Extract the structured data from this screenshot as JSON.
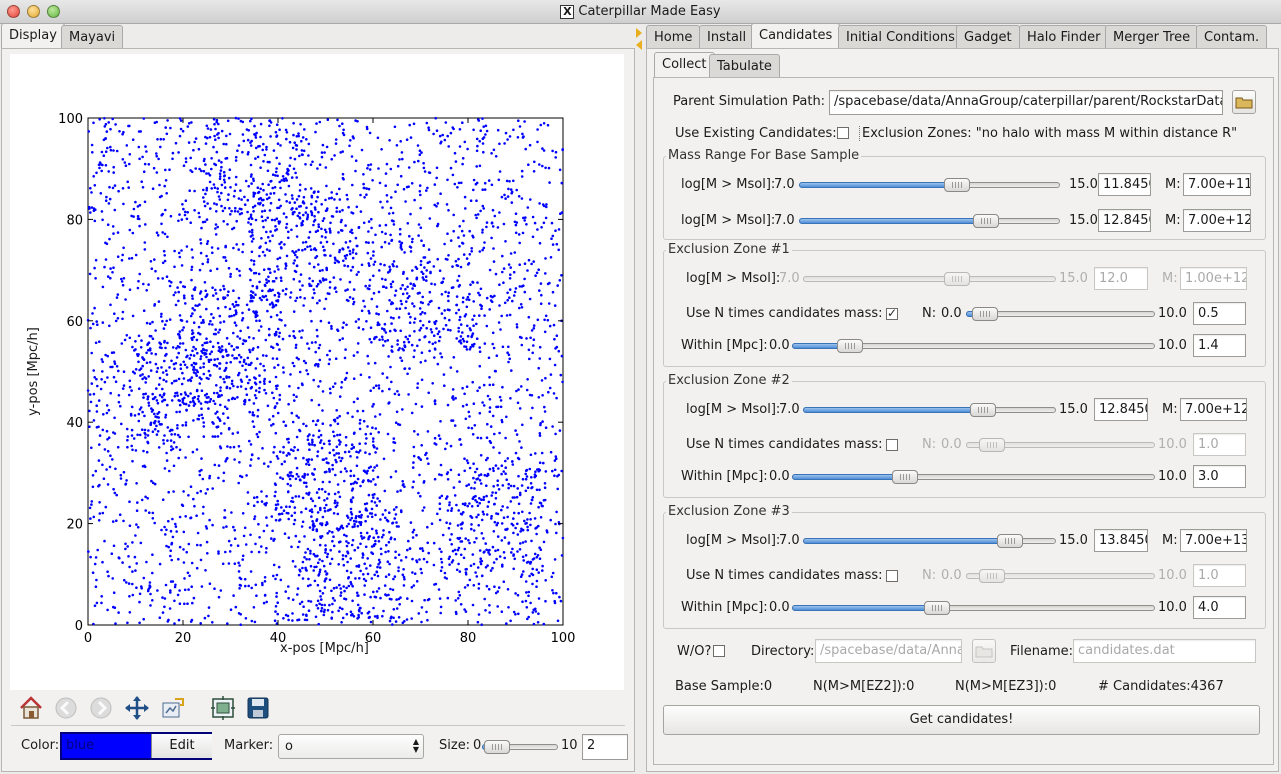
{
  "window": {
    "title": "Caterpillar Made Easy"
  },
  "left_tabs": [
    "Display",
    "Mayavi"
  ],
  "right_tabs": [
    "Home",
    "Install",
    "Candidates",
    "Initial Conditions",
    "Gadget",
    "Halo Finder",
    "Merger Tree",
    "Contam."
  ],
  "sub_tabs": [
    "Collect",
    "Tabulate"
  ],
  "plot": {
    "xlabel": "x-pos [Mpc/h]",
    "ylabel": "y-pos [Mpc/h]",
    "xticks": [
      "0",
      "20",
      "40",
      "60",
      "80",
      "100"
    ],
    "yticks": [
      "0",
      "20",
      "40",
      "60",
      "80",
      "100"
    ]
  },
  "chart_data": {
    "type": "scatter",
    "title": "",
    "xlabel": "x-pos [Mpc/h]",
    "ylabel": "y-pos [Mpc/h]",
    "xlim": [
      0,
      100
    ],
    "ylim": [
      0,
      100
    ],
    "marker": "o",
    "marker_size": 2,
    "color": "#0000ff",
    "n_points": 4367,
    "sample_points": [
      [
        1.2,
        88.5
      ],
      [
        3.8,
        72.1
      ],
      [
        6.5,
        45.3
      ],
      [
        10.2,
        19.8
      ],
      [
        12.7,
        54.2
      ],
      [
        15.5,
        84.6
      ],
      [
        18.1,
        31.4
      ],
      [
        21.4,
        9.7
      ],
      [
        24.9,
        62.3
      ],
      [
        27.3,
        78.5
      ],
      [
        30.5,
        44.8
      ],
      [
        33.1,
        56.0
      ],
      [
        35.6,
        25.2
      ],
      [
        38.2,
        91.3
      ],
      [
        40.7,
        67.9
      ],
      [
        42.4,
        47.1
      ],
      [
        45.8,
        14.3
      ],
      [
        47.2,
        35.6
      ],
      [
        50.1,
        81.7
      ],
      [
        52.5,
        24.1
      ],
      [
        54.7,
        41.8
      ],
      [
        56.3,
        9.2
      ],
      [
        58.9,
        66.4
      ],
      [
        61.2,
        38.0
      ],
      [
        63.5,
        95.6
      ],
      [
        65.8,
        52.7
      ],
      [
        68.4,
        18.3
      ],
      [
        70.7,
        74.9
      ],
      [
        73.0,
        44.1
      ],
      [
        75.6,
        29.8
      ],
      [
        78.1,
        87.2
      ],
      [
        80.4,
        58.5
      ],
      [
        82.9,
        12.6
      ],
      [
        85.3,
        47.4
      ],
      [
        87.6,
        70.3
      ],
      [
        90.1,
        33.9
      ],
      [
        92.8,
        6.5
      ],
      [
        95.2,
        54.8
      ],
      [
        97.4,
        20.7
      ],
      [
        99.1,
        74.0
      ]
    ]
  },
  "toolbar": {
    "icons": [
      "home-icon",
      "back-icon",
      "forward-icon",
      "pan-icon",
      "configure-icon",
      "subplots-icon",
      "save-icon"
    ]
  },
  "display_controls": {
    "color_label": "Color:",
    "color_value": "blue",
    "edit_label": "Edit",
    "marker_label": "Marker:",
    "marker_value": "o",
    "size_label": "Size:",
    "size_min": "0",
    "size_max": "10",
    "size_value": "2",
    "size_fraction": 0.2
  },
  "collect": {
    "parent_path_label": "Parent Simulation Path:",
    "parent_path_value": "/spacebase/data/AnnaGroup/caterpillar/parent/RockstarData",
    "use_existing_label": "Use Existing Candidates:",
    "use_existing_checked": false,
    "exclusion_note": "Exclusion Zones: \"no halo with mass M within distance R\"",
    "mass_range": {
      "title": "Mass Range For Base Sample",
      "rows": [
        {
          "label": "log[M > Msol]:",
          "min": "7.0",
          "max": "15.0",
          "value": "11.8450",
          "fraction": 0.605,
          "m_label": "M:",
          "m_value": "7.00e+11"
        },
        {
          "label": "log[M > Msol]:",
          "min": "7.0",
          "max": "15.0",
          "value": "12.8450",
          "fraction": 0.715,
          "m_label": "M:",
          "m_value": "7.00e+12"
        }
      ]
    },
    "zones": [
      {
        "title": "Exclusion Zone #1",
        "mass": {
          "label": "log[M > Msol]:",
          "min": "7.0",
          "max": "15.0",
          "value": "12.0",
          "fraction": 0.61,
          "m_label": "M:",
          "m_value": "1.00e+12",
          "disabled": true
        },
        "use_n": {
          "label": "Use N times candidates mass:",
          "checked": true,
          "n_label": "N:",
          "min": "0.0",
          "max": "10.0",
          "value": "0.5",
          "fraction": 0.1,
          "disabled": false
        },
        "within": {
          "label": "Within [Mpc]:",
          "min": "0.0",
          "max": "10.0",
          "value": "1.4",
          "fraction": 0.16
        }
      },
      {
        "title": "Exclusion Zone #2",
        "mass": {
          "label": "log[M > Msol]:",
          "min": "7.0",
          "max": "15.0",
          "value": "12.8450",
          "fraction": 0.71,
          "m_label": "M:",
          "m_value": "7.00e+12",
          "disabled": false
        },
        "use_n": {
          "label": "Use N times candidates mass:",
          "checked": false,
          "n_label": "N:",
          "min": "0.0",
          "max": "10.0",
          "value": "1.0",
          "fraction": 0.14,
          "disabled": true
        },
        "within": {
          "label": "Within [Mpc]:",
          "min": "0.0",
          "max": "10.0",
          "value": "3.0",
          "fraction": 0.31
        }
      },
      {
        "title": "Exclusion Zone #3",
        "mass": {
          "label": "log[M > Msol]:",
          "min": "7.0",
          "max": "15.0",
          "value": "13.8450",
          "fraction": 0.82,
          "m_label": "M:",
          "m_value": "7.00e+13",
          "disabled": false
        },
        "use_n": {
          "label": "Use N times candidates mass:",
          "checked": false,
          "n_label": "N:",
          "min": "0.0",
          "max": "10.0",
          "value": "1.0",
          "fraction": 0.14,
          "disabled": true
        },
        "within": {
          "label": "Within [Mpc]:",
          "min": "0.0",
          "max": "10.0",
          "value": "4.0",
          "fraction": 0.4
        }
      }
    ],
    "wo_label": "W/O?",
    "directory_label": "Directory:",
    "directory_value": "/spacebase/data/Anna",
    "filename_label": "Filename:",
    "filename_value": "candidates.dat",
    "stats": {
      "base_sample": "Base Sample:0",
      "n_ez2": "N(M>M[EZ2]):0",
      "n_ez3": "N(M>M[EZ3]):0",
      "n_candidates": "# Candidates:4367"
    },
    "get_button": "Get candidates!"
  }
}
